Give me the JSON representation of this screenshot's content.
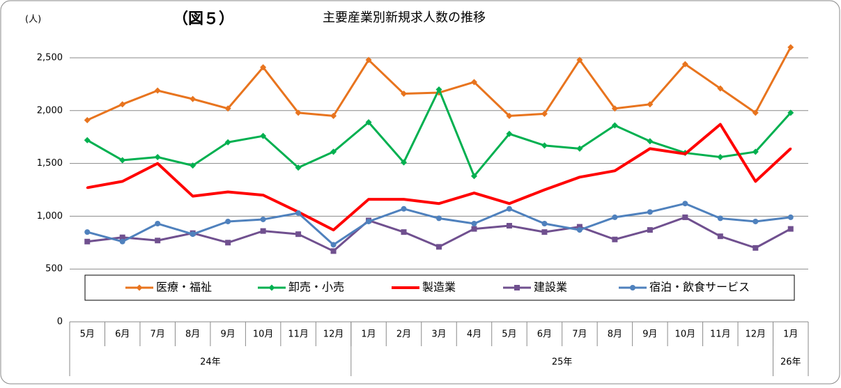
{
  "chart_data": {
    "type": "line",
    "title": "主要産業別新規求人数の推移",
    "figure_label": "（図５）",
    "y_unit": "(人)",
    "categories": [
      "5月",
      "6月",
      "7月",
      "8月",
      "9月",
      "10月",
      "11月",
      "12月",
      "1月",
      "2月",
      "3月",
      "4月",
      "5月",
      "6月",
      "7月",
      "8月",
      "9月",
      "10月",
      "11月",
      "12月",
      "1月"
    ],
    "year_groups": [
      {
        "label": "24年",
        "count": 8
      },
      {
        "label": "25年",
        "count": 12
      },
      {
        "label": "26年",
        "count": 1
      }
    ],
    "series": [
      {
        "name": "医療・福祉",
        "color": "#e8741e",
        "marker": "diamond",
        "values": [
          1910,
          2060,
          2190,
          2110,
          2020,
          2410,
          1980,
          1950,
          2480,
          2160,
          2170,
          2270,
          1950,
          1970,
          2480,
          2020,
          2060,
          2440,
          2210,
          1980,
          2600
        ]
      },
      {
        "name": "卸売・小売",
        "color": "#00b050",
        "marker": "diamond",
        "values": [
          1720,
          1530,
          1560,
          1480,
          1700,
          1760,
          1460,
          1610,
          1890,
          1510,
          2200,
          1380,
          1780,
          1670,
          1640,
          1860,
          1710,
          1600,
          1560,
          1610,
          1980
        ]
      },
      {
        "name": "製造業",
        "color": "#ff0000",
        "marker": "none",
        "values": [
          1270,
          1330,
          1500,
          1190,
          1230,
          1200,
          1040,
          870,
          1160,
          1160,
          1120,
          1220,
          1120,
          1250,
          1370,
          1430,
          1640,
          1590,
          1870,
          1330,
          1640
        ]
      },
      {
        "name": "建設業",
        "color": "#70508f",
        "marker": "square",
        "values": [
          760,
          800,
          770,
          840,
          750,
          860,
          830,
          670,
          960,
          850,
          710,
          880,
          910,
          850,
          900,
          780,
          870,
          990,
          810,
          700,
          880
        ]
      },
      {
        "name": "宿泊・飲食サービス",
        "color": "#4f81bd",
        "marker": "circle",
        "values": [
          850,
          760,
          930,
          830,
          950,
          970,
          1030,
          730,
          950,
          1070,
          980,
          930,
          1070,
          930,
          870,
          990,
          1040,
          1120,
          980,
          950,
          990
        ]
      }
    ],
    "ylim": [
      0,
      2800
    ],
    "yticks": [
      0,
      500,
      {
        "value": 1000,
        "label": "1,000"
      },
      {
        "value": 1500,
        "label": "1,500"
      },
      {
        "value": 2000,
        "label": "2,000"
      },
      {
        "value": 2500,
        "label": "2,500"
      }
    ],
    "grid": true
  }
}
